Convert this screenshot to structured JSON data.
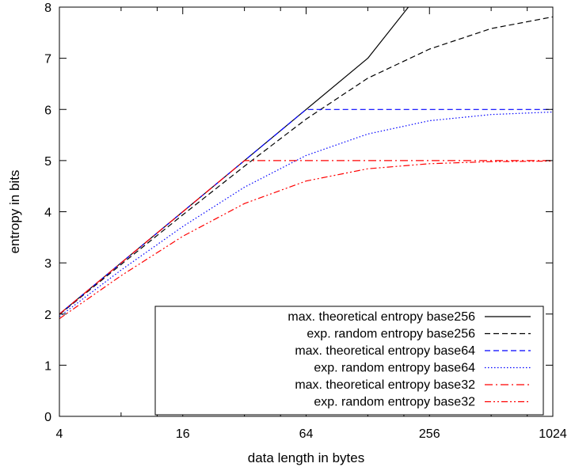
{
  "chart_data": {
    "type": "line",
    "xlabel": "data length in bytes",
    "ylabel": "entropy in bits",
    "xscale": "log2",
    "xlim": [
      4,
      1024
    ],
    "ylim": [
      0,
      8
    ],
    "x_ticks": [
      4,
      16,
      64,
      256,
      1024
    ],
    "x_tick_labels": [
      "4",
      "16",
      "64",
      "256",
      "1024"
    ],
    "y_ticks": [
      0,
      1,
      2,
      3,
      4,
      5,
      6,
      7,
      8
    ],
    "y_tick_labels": [
      "0",
      "1",
      "2",
      "3",
      "4",
      "5",
      "6",
      "7",
      "8"
    ],
    "grid": false,
    "legend_position": "bottom-right",
    "series": [
      {
        "name": "max. theoretical entropy base256",
        "color": "#000000",
        "dash": "solid",
        "x": [
          4,
          8,
          16,
          32,
          64,
          128,
          202
        ],
        "y": [
          2,
          3,
          4,
          5,
          6,
          7,
          8
        ]
      },
      {
        "name": "exp. random entropy base256",
        "color": "#000000",
        "dash": "dashed",
        "x": [
          4,
          8,
          16,
          32,
          64,
          128,
          256,
          512,
          1024
        ],
        "y": [
          1.99,
          2.97,
          3.94,
          4.89,
          5.81,
          6.61,
          7.18,
          7.58,
          7.81
        ]
      },
      {
        "name": "max. theoretical entropy base64",
        "color": "#0000ff",
        "dash": "dashed",
        "x": [
          4,
          8,
          16,
          32,
          64,
          128,
          256,
          512,
          1024
        ],
        "y": [
          2,
          3,
          4,
          5,
          6,
          6,
          6,
          6,
          6
        ]
      },
      {
        "name": "exp. random entropy base64",
        "color": "#0000ff",
        "dash": "dotted",
        "x": [
          4,
          8,
          16,
          32,
          64,
          128,
          256,
          512,
          1024
        ],
        "y": [
          1.95,
          2.86,
          3.71,
          4.48,
          5.1,
          5.52,
          5.78,
          5.9,
          5.95
        ]
      },
      {
        "name": "max. theoretical entropy base32",
        "color": "#ff0000",
        "dash": "dashdot",
        "x": [
          4,
          8,
          16,
          32,
          64,
          128,
          256,
          512,
          1024
        ],
        "y": [
          2,
          3,
          4,
          5,
          5,
          5,
          5,
          5,
          5
        ]
      },
      {
        "name": "exp. random entropy base32",
        "color": "#ff0000",
        "dash": "dashdotdot",
        "x": [
          4,
          8,
          16,
          32,
          64,
          128,
          256,
          512,
          1024
        ],
        "y": [
          1.91,
          2.75,
          3.52,
          4.16,
          4.6,
          4.84,
          4.94,
          4.98,
          4.99
        ]
      }
    ]
  }
}
